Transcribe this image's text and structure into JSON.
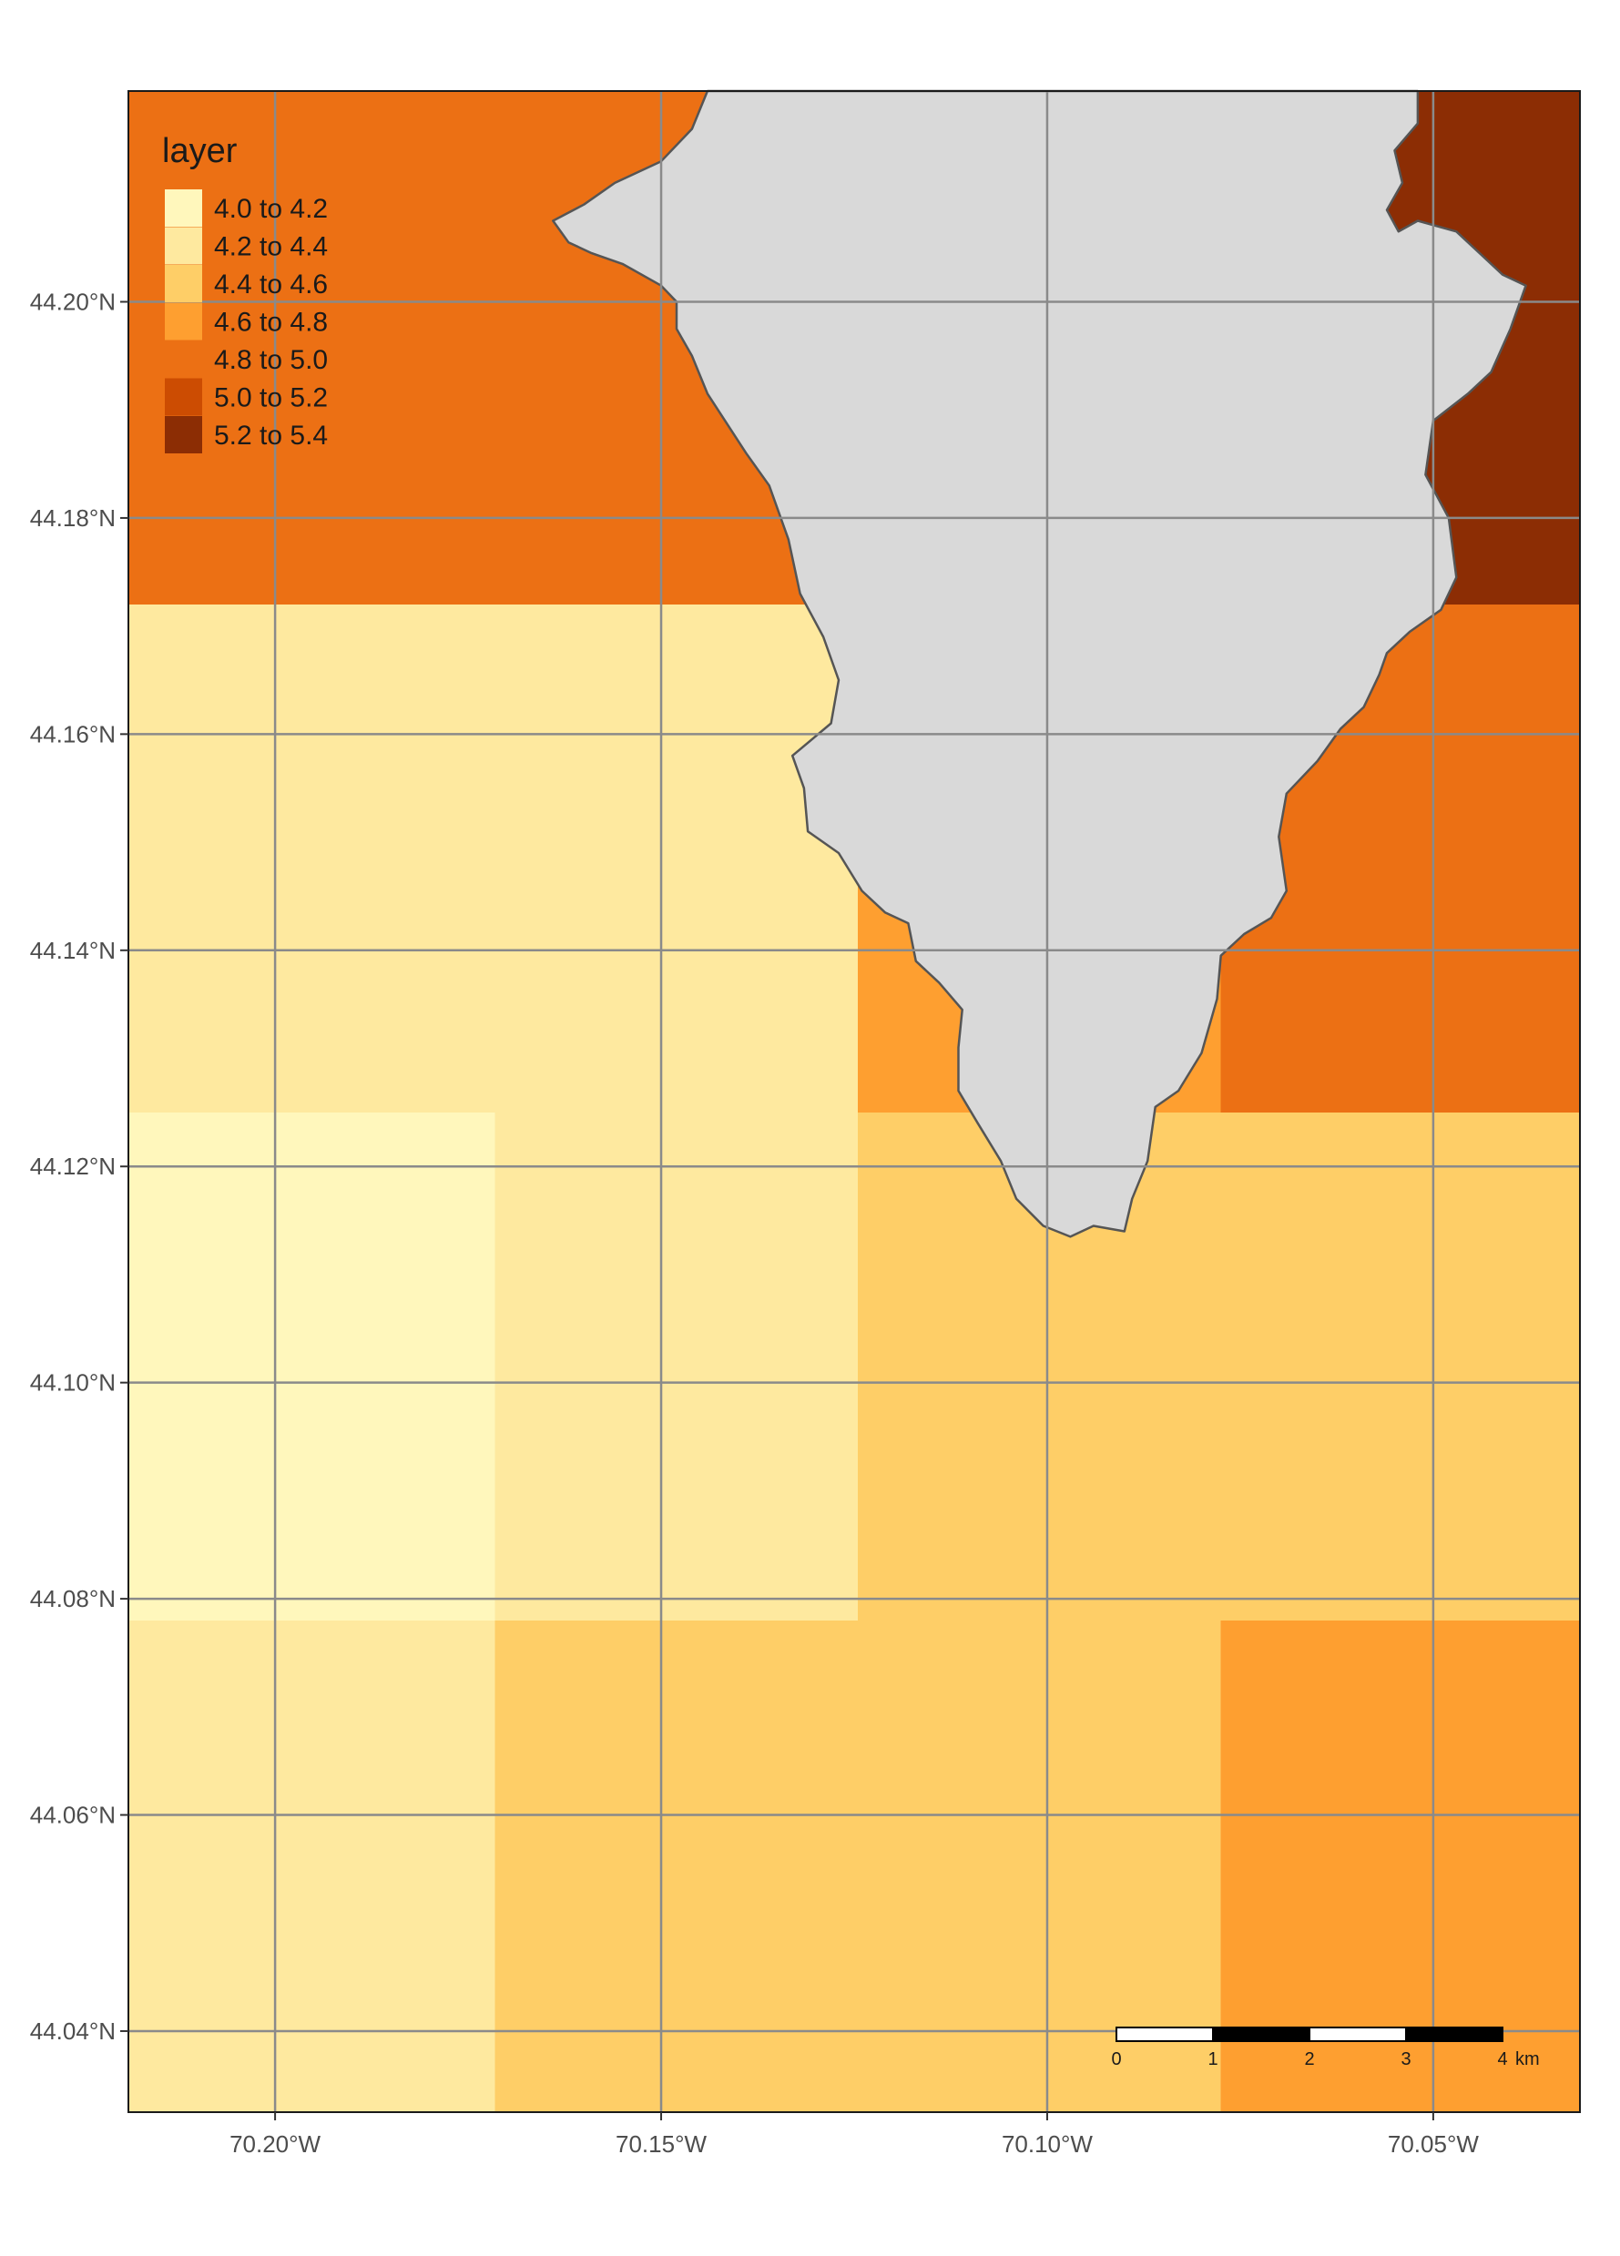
{
  "legend": {
    "title": "layer",
    "items": [
      {
        "label": "4.0 to 4.2",
        "color": "#fff7bc"
      },
      {
        "label": "4.2 to 4.4",
        "color": "#fee99f"
      },
      {
        "label": "4.4 to 4.6",
        "color": "#fece67"
      },
      {
        "label": "4.6 to 4.8",
        "color": "#fe9f30"
      },
      {
        "label": "4.8 to 5.0",
        "color": "#ec7014"
      },
      {
        "label": "5.0 to 5.2",
        "color": "#cc4c02"
      },
      {
        "label": "5.2 to 5.4",
        "color": "#8c2d04"
      }
    ]
  },
  "axes": {
    "lat_ticks": [
      "44.20°N",
      "44.18°N",
      "44.16°N",
      "44.14°N",
      "44.12°N",
      "44.10°N",
      "44.08°N",
      "44.06°N",
      "44.04°N"
    ],
    "lon_ticks": [
      "70.20°W",
      "70.15°W",
      "70.10°W",
      "70.05°W"
    ]
  },
  "scale_bar": {
    "labels": [
      "0",
      "1",
      "2",
      "3",
      "4"
    ],
    "unit": "km"
  },
  "colors": {
    "land": "#d9d9d9",
    "coastline": "#555555",
    "grid": "#8a8a8a",
    "frame": "#1a1a1a"
  },
  "chart_data": {
    "type": "heatmap",
    "title": "",
    "value_label": "layer",
    "lon_range": [
      -70.219,
      -70.031
    ],
    "lat_range": [
      44.0325,
      44.2195
    ],
    "lon_breaks": [
      -70.219,
      -70.1715,
      -70.1245,
      -70.0775,
      -70.031
    ],
    "lat_breaks": [
      44.2195,
      44.172,
      44.125,
      44.078,
      44.0325
    ],
    "cell_classes": [
      [
        "4.8 to 5.0",
        "4.8 to 5.0",
        "4.8 to 5.0",
        "5.2 to 5.4"
      ],
      [
        "4.2 to 4.4",
        "4.2 to 4.4",
        "4.6 to 4.8",
        "4.8 to 5.0"
      ],
      [
        "4.0 to 4.2",
        "4.2 to 4.4",
        "4.4 to 4.6",
        "4.4 to 4.6"
      ],
      [
        "4.2 to 4.4",
        "4.4 to 4.6",
        "4.4 to 4.6",
        "4.6 to 4.8"
      ]
    ],
    "land_outline_lonlat": [
      [
        -70.144,
        44.2195
      ],
      [
        -70.146,
        44.216
      ],
      [
        -70.15,
        44.213
      ],
      [
        -70.156,
        44.211
      ],
      [
        -70.16,
        44.209
      ],
      [
        -70.164,
        44.2075
      ],
      [
        -70.162,
        44.2055
      ],
      [
        -70.159,
        44.2045
      ],
      [
        -70.155,
        44.2035
      ],
      [
        -70.15,
        44.2015
      ],
      [
        -70.148,
        44.2
      ],
      [
        -70.148,
        44.1975
      ],
      [
        -70.146,
        44.195
      ],
      [
        -70.144,
        44.1915
      ],
      [
        -70.139,
        44.186
      ],
      [
        -70.136,
        44.183
      ],
      [
        -70.1335,
        44.178
      ],
      [
        -70.132,
        44.173
      ],
      [
        -70.129,
        44.169
      ],
      [
        -70.127,
        44.165
      ],
      [
        -70.128,
        44.161
      ],
      [
        -70.1305,
        44.1595
      ],
      [
        -70.133,
        44.158
      ],
      [
        -70.1315,
        44.155
      ],
      [
        -70.131,
        44.151
      ],
      [
        -70.127,
        44.149
      ],
      [
        -70.124,
        44.1455
      ],
      [
        -70.121,
        44.1435
      ],
      [
        -70.118,
        44.1425
      ],
      [
        -70.117,
        44.139
      ],
      [
        -70.114,
        44.137
      ],
      [
        -70.111,
        44.1345
      ],
      [
        -70.1115,
        44.131
      ],
      [
        -70.1115,
        44.127
      ],
      [
        -70.109,
        44.124
      ],
      [
        -70.106,
        44.1205
      ],
      [
        -70.104,
        44.117
      ],
      [
        -70.1005,
        44.1145
      ],
      [
        -70.097,
        44.1135
      ],
      [
        -70.094,
        44.1145
      ],
      [
        -70.09,
        44.114
      ],
      [
        -70.089,
        44.117
      ],
      [
        -70.087,
        44.1205
      ],
      [
        -70.086,
        44.1255
      ],
      [
        -70.083,
        44.127
      ],
      [
        -70.08,
        44.1305
      ],
      [
        -70.078,
        44.1355
      ],
      [
        -70.0775,
        44.1395
      ],
      [
        -70.0745,
        44.1415
      ],
      [
        -70.071,
        44.143
      ],
      [
        -70.069,
        44.1455
      ],
      [
        -70.07,
        44.1505
      ],
      [
        -70.069,
        44.1545
      ],
      [
        -70.065,
        44.1575
      ],
      [
        -70.062,
        44.1605
      ],
      [
        -70.059,
        44.1625
      ],
      [
        -70.057,
        44.1655
      ],
      [
        -70.056,
        44.1675
      ],
      [
        -70.053,
        44.1695
      ],
      [
        -70.049,
        44.1715
      ],
      [
        -70.047,
        44.1745
      ],
      [
        -70.048,
        44.18
      ],
      [
        -70.051,
        44.184
      ],
      [
        -70.05,
        44.189
      ],
      [
        -70.0455,
        44.1915
      ],
      [
        -70.0425,
        44.1935
      ],
      [
        -70.04,
        44.1975
      ],
      [
        -70.038,
        44.2015
      ],
      [
        -70.041,
        44.2025
      ],
      [
        -70.044,
        44.2045
      ],
      [
        -70.047,
        44.2065
      ],
      [
        -70.052,
        44.2075
      ],
      [
        -70.0545,
        44.2065
      ],
      [
        -70.056,
        44.2085
      ],
      [
        -70.054,
        44.211
      ],
      [
        -70.055,
        44.214
      ],
      [
        -70.052,
        44.2165
      ],
      [
        -70.052,
        44.2195
      ]
    ]
  }
}
